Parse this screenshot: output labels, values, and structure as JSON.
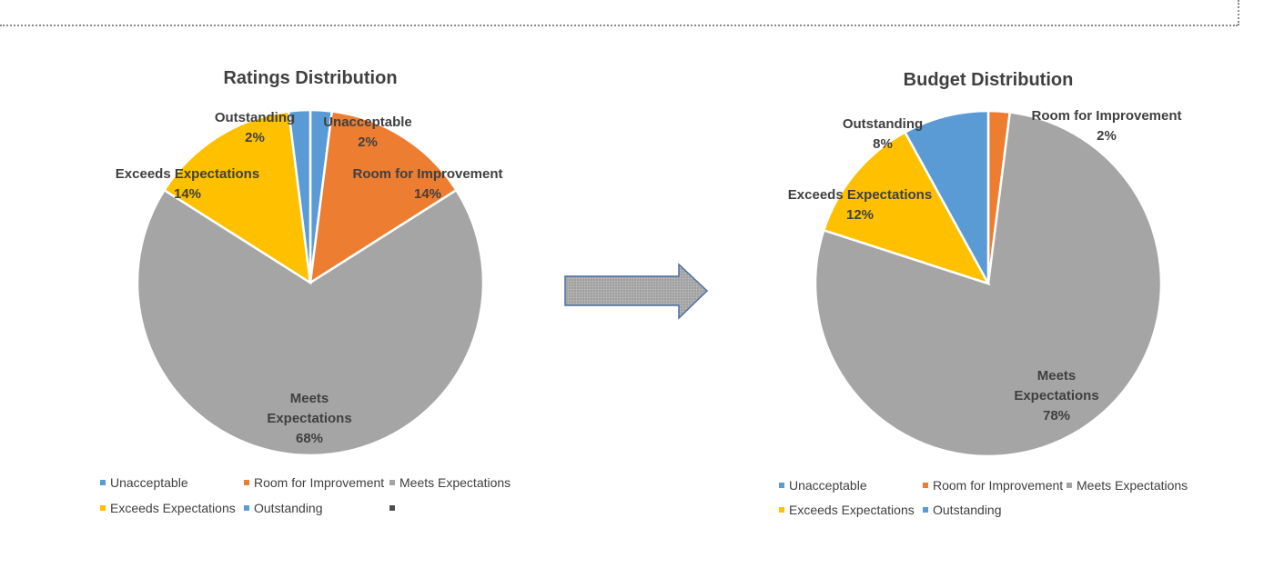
{
  "chart_data": [
    {
      "type": "pie",
      "title": "Ratings Distribution",
      "categories": [
        "Unacceptable",
        "Room for Improvement",
        "Meets Expectations",
        "Exceeds Expectations",
        "Outstanding"
      ],
      "values": [
        2,
        14,
        68,
        14,
        2
      ],
      "data_labels": [
        "2%",
        "14%",
        "68%",
        "14%",
        "2%"
      ],
      "colors": [
        "#5B9BD5",
        "#ED7D31",
        "#A5A5A5",
        "#FFC000",
        "#5B9BD5"
      ],
      "legend": {
        "position": "bottom",
        "entries": [
          "Unacceptable",
          "Room for Improvement",
          "Meets Expectations",
          "Exceeds Expectations",
          "Outstanding",
          ""
        ],
        "colors": [
          "#5B9BD5",
          "#ED7D31",
          "#A5A5A5",
          "#FFC000",
          "#5B9BD5",
          "#4F4F4F"
        ]
      }
    },
    {
      "type": "pie",
      "title": "Budget Distribution",
      "categories": [
        "Unacceptable",
        "Room for Improvement",
        "Meets Expectations",
        "Exceeds Expectations",
        "Outstanding"
      ],
      "values": [
        0,
        2,
        78,
        12,
        8
      ],
      "data_labels": [
        "",
        "2%",
        "78%",
        "12%",
        "8%"
      ],
      "colors": [
        "#5B9BD5",
        "#ED7D31",
        "#A5A5A5",
        "#FFC000",
        "#5B9BD5"
      ],
      "legend": {
        "position": "bottom",
        "entries": [
          "Unacceptable",
          "Room for Improvement",
          "Meets Expectations",
          "Exceeds Expectations",
          "Outstanding"
        ],
        "colors": [
          "#5B9BD5",
          "#ED7D31",
          "#A5A5A5",
          "#FFC000",
          "#5B9BD5"
        ]
      }
    }
  ],
  "arrow": {
    "icon": "right-arrow-icon",
    "fill": "#A6A6A6",
    "stroke": "#4A6FA5"
  }
}
